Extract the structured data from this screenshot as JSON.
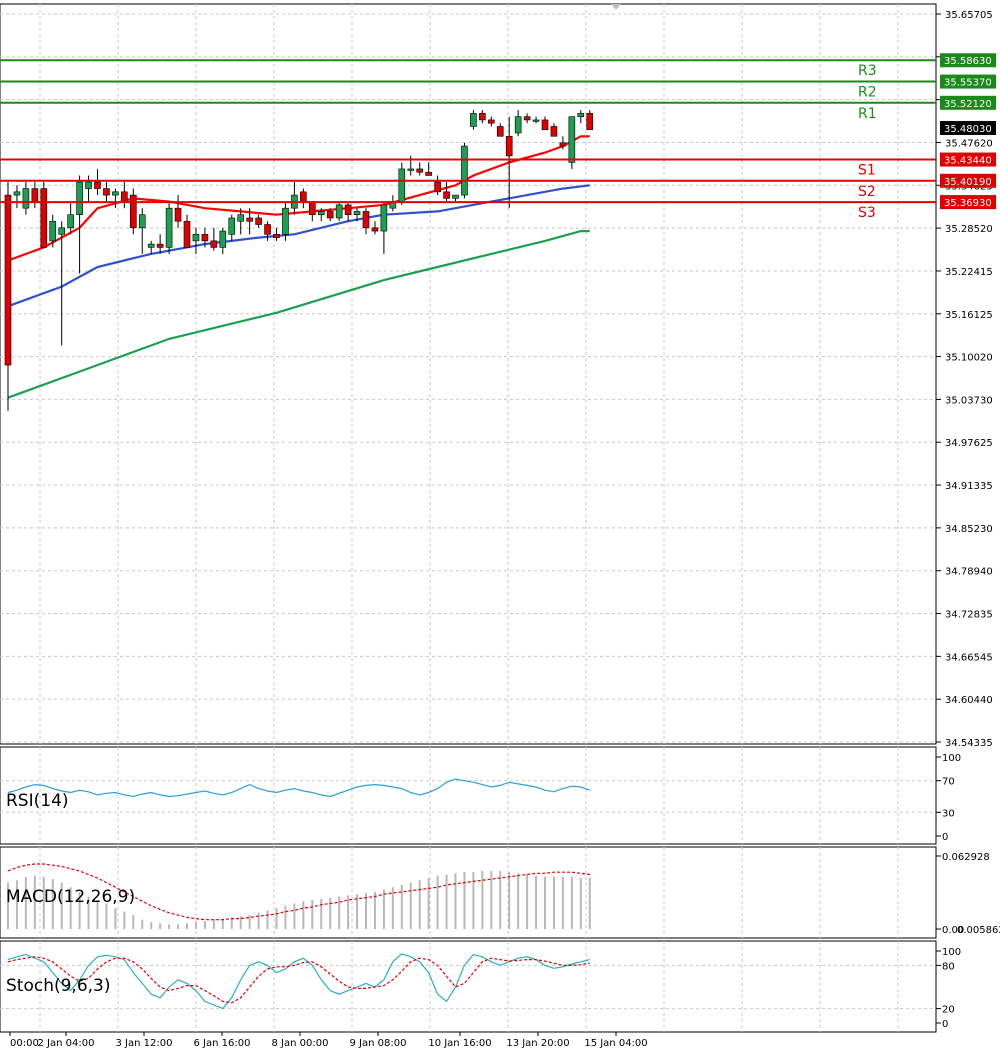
{
  "chart_data": {
    "type": "candlestick",
    "price_axis": {
      "ticks": [
        "35.65705",
        "35.59615",
        "35.53710",
        "35.47620",
        "35.34625",
        "35.28520",
        "35.22415",
        "35.16125",
        "35.10020",
        "35.03730",
        "34.97625",
        "34.91335",
        "34.85230",
        "34.78940",
        "34.72835",
        "34.66545",
        "34.60440",
        "34.54335"
      ],
      "ylim": [
        34.54335,
        35.65705
      ]
    },
    "time_axis": {
      "labels": [
        "00:00",
        "2 Jan 04:00",
        "3 Jan 12:00",
        "6 Jan 16:00",
        "8 Jan 00:00",
        "9 Jan 08:00",
        "10 Jan 16:00",
        "13 Jan 20:00",
        "15 Jan 04:00"
      ]
    },
    "current_price": "35.48030",
    "levels": [
      {
        "name": "R3",
        "value": 35.5863,
        "label": "35.58630",
        "color": "#1b8a1b"
      },
      {
        "name": "R2",
        "value": 35.5537,
        "label": "35.55370",
        "color": "#1b8a1b"
      },
      {
        "name": "R1",
        "value": 35.5212,
        "label": "35.52120",
        "color": "#1b8a1b"
      },
      {
        "name": "S1",
        "value": 35.4344,
        "label": "35.43440",
        "color": "#e00000"
      },
      {
        "name": "S2",
        "value": 35.4019,
        "label": "35.40190",
        "color": "#e00000"
      },
      {
        "name": "S3",
        "value": 35.3693,
        "label": "35.36930",
        "color": "#e00000"
      }
    ],
    "candles": [
      {
        "o": 35.38,
        "h": 35.4,
        "l": 35.05,
        "c": 35.12
      },
      {
        "o": 35.38,
        "h": 35.395,
        "l": 35.36,
        "c": 35.385
      },
      {
        "o": 35.36,
        "h": 35.4,
        "l": 35.35,
        "c": 35.39
      },
      {
        "o": 35.39,
        "h": 35.4,
        "l": 35.36,
        "c": 35.37
      },
      {
        "o": 35.39,
        "h": 35.4,
        "l": 35.3,
        "c": 35.3
      },
      {
        "o": 35.31,
        "h": 35.35,
        "l": 35.3,
        "c": 35.34
      },
      {
        "o": 35.32,
        "h": 35.34,
        "l": 35.15,
        "c": 35.33
      },
      {
        "o": 35.33,
        "h": 35.37,
        "l": 35.32,
        "c": 35.35
      },
      {
        "o": 35.35,
        "h": 35.41,
        "l": 35.26,
        "c": 35.4
      },
      {
        "o": 35.39,
        "h": 35.41,
        "l": 35.37,
        "c": 35.4
      },
      {
        "o": 35.4,
        "h": 35.42,
        "l": 35.38,
        "c": 35.39
      },
      {
        "o": 35.39,
        "h": 35.4,
        "l": 35.37,
        "c": 35.38
      },
      {
        "o": 35.38,
        "h": 35.39,
        "l": 35.36,
        "c": 35.385
      },
      {
        "o": 35.385,
        "h": 35.4,
        "l": 35.36,
        "c": 35.37
      },
      {
        "o": 35.38,
        "h": 35.39,
        "l": 35.32,
        "c": 35.33
      },
      {
        "o": 35.33,
        "h": 35.36,
        "l": 35.29,
        "c": 35.35
      },
      {
        "o": 35.3,
        "h": 35.31,
        "l": 35.29,
        "c": 35.305
      },
      {
        "o": 35.305,
        "h": 35.32,
        "l": 35.29,
        "c": 35.3
      },
      {
        "o": 35.3,
        "h": 35.37,
        "l": 35.29,
        "c": 35.36
      },
      {
        "o": 35.36,
        "h": 35.38,
        "l": 35.33,
        "c": 35.34
      },
      {
        "o": 35.34,
        "h": 35.35,
        "l": 35.3,
        "c": 35.3
      },
      {
        "o": 35.31,
        "h": 35.33,
        "l": 35.29,
        "c": 35.32
      },
      {
        "o": 35.32,
        "h": 35.33,
        "l": 35.3,
        "c": 35.31
      },
      {
        "o": 35.31,
        "h": 35.33,
        "l": 35.295,
        "c": 35.3
      },
      {
        "o": 35.3,
        "h": 35.33,
        "l": 35.29,
        "c": 35.325
      },
      {
        "o": 35.32,
        "h": 35.35,
        "l": 35.31,
        "c": 35.345
      },
      {
        "o": 35.34,
        "h": 35.36,
        "l": 35.32,
        "c": 35.35
      },
      {
        "o": 35.345,
        "h": 35.36,
        "l": 35.32,
        "c": 35.34
      },
      {
        "o": 35.345,
        "h": 35.35,
        "l": 35.33,
        "c": 35.335
      },
      {
        "o": 35.335,
        "h": 35.34,
        "l": 35.31,
        "c": 35.32
      },
      {
        "o": 35.32,
        "h": 35.33,
        "l": 35.31,
        "c": 35.315
      },
      {
        "o": 35.32,
        "h": 35.37,
        "l": 35.31,
        "c": 35.36
      },
      {
        "o": 35.36,
        "h": 35.4,
        "l": 35.35,
        "c": 35.38
      },
      {
        "o": 35.385,
        "h": 35.39,
        "l": 35.36,
        "c": 35.37
      },
      {
        "o": 35.37,
        "h": 35.37,
        "l": 35.34,
        "c": 35.35
      },
      {
        "o": 35.35,
        "h": 35.36,
        "l": 35.34,
        "c": 35.355
      },
      {
        "o": 35.355,
        "h": 35.36,
        "l": 35.34,
        "c": 35.345
      },
      {
        "o": 35.345,
        "h": 35.37,
        "l": 35.34,
        "c": 35.365
      },
      {
        "o": 35.365,
        "h": 35.37,
        "l": 35.34,
        "c": 35.35
      },
      {
        "o": 35.35,
        "h": 35.36,
        "l": 35.34,
        "c": 35.355
      },
      {
        "o": 35.355,
        "h": 35.36,
        "l": 35.32,
        "c": 35.33
      },
      {
        "o": 35.33,
        "h": 35.34,
        "l": 35.32,
        "c": 35.325
      },
      {
        "o": 35.325,
        "h": 35.37,
        "l": 35.29,
        "c": 35.365
      },
      {
        "o": 35.36,
        "h": 35.38,
        "l": 35.355,
        "c": 35.37
      },
      {
        "o": 35.37,
        "h": 35.43,
        "l": 35.365,
        "c": 35.42
      },
      {
        "o": 35.42,
        "h": 35.44,
        "l": 35.41,
        "c": 35.42
      },
      {
        "o": 35.42,
        "h": 35.43,
        "l": 35.41,
        "c": 35.415
      },
      {
        "o": 35.415,
        "h": 35.43,
        "l": 35.41,
        "c": 35.41
      },
      {
        "o": 35.4,
        "h": 35.41,
        "l": 35.38,
        "c": 35.385
      },
      {
        "o": 35.385,
        "h": 35.4,
        "l": 35.37,
        "c": 35.375
      },
      {
        "o": 35.375,
        "h": 35.38,
        "l": 35.37,
        "c": 35.38
      },
      {
        "o": 35.38,
        "h": 35.46,
        "l": 35.375,
        "c": 35.455
      },
      {
        "o": 35.485,
        "h": 35.51,
        "l": 35.48,
        "c": 35.505
      },
      {
        "o": 35.505,
        "h": 35.51,
        "l": 35.49,
        "c": 35.495
      },
      {
        "o": 35.495,
        "h": 35.5,
        "l": 35.485,
        "c": 35.49
      },
      {
        "o": 35.485,
        "h": 35.49,
        "l": 35.47,
        "c": 35.47
      },
      {
        "o": 35.47,
        "h": 35.5,
        "l": 35.36,
        "c": 35.44
      },
      {
        "o": 35.475,
        "h": 35.51,
        "l": 35.47,
        "c": 35.5
      },
      {
        "o": 35.5,
        "h": 35.505,
        "l": 35.49,
        "c": 35.495
      },
      {
        "o": 35.495,
        "h": 35.5,
        "l": 35.49,
        "c": 35.495
      },
      {
        "o": 35.495,
        "h": 35.5,
        "l": 35.48,
        "c": 35.48
      },
      {
        "o": 35.485,
        "h": 35.49,
        "l": 35.47,
        "c": 35.47
      },
      {
        "o": 35.46,
        "h": 35.47,
        "l": 35.45,
        "c": 35.455
      },
      {
        "o": 35.43,
        "h": 35.5,
        "l": 35.42,
        "c": 35.5
      },
      {
        "o": 35.5,
        "h": 35.51,
        "l": 35.49,
        "c": 35.505
      },
      {
        "o": 35.505,
        "h": 35.51,
        "l": 35.48,
        "c": 35.48
      }
    ],
    "moving_averages": [
      {
        "color": "#ff0000",
        "points": [
          [
            0,
            35.28
          ],
          [
            4,
            35.3
          ],
          [
            8,
            35.33
          ],
          [
            10,
            35.36
          ],
          [
            14,
            35.375
          ],
          [
            18,
            35.37
          ],
          [
            22,
            35.36
          ],
          [
            26,
            35.355
          ],
          [
            30,
            35.35
          ],
          [
            34,
            35.355
          ],
          [
            38,
            35.36
          ],
          [
            42,
            35.365
          ],
          [
            46,
            35.38
          ],
          [
            50,
            35.395
          ],
          [
            52,
            35.41
          ],
          [
            56,
            35.43
          ],
          [
            60,
            35.445
          ],
          [
            62,
            35.455
          ],
          [
            64,
            35.47
          ],
          [
            65,
            35.47
          ]
        ]
      },
      {
        "color": "#3050d0",
        "points": [
          [
            0,
            35.21
          ],
          [
            6,
            35.24
          ],
          [
            10,
            35.27
          ],
          [
            16,
            35.29
          ],
          [
            22,
            35.305
          ],
          [
            28,
            35.315
          ],
          [
            32,
            35.32
          ],
          [
            38,
            35.34
          ],
          [
            42,
            35.35
          ],
          [
            48,
            35.355
          ],
          [
            54,
            35.37
          ],
          [
            58,
            35.38
          ],
          [
            62,
            35.39
          ],
          [
            65,
            35.395
          ]
        ]
      },
      {
        "color": "#1aa050",
        "points": [
          [
            0,
            35.07
          ],
          [
            6,
            35.1
          ],
          [
            12,
            35.13
          ],
          [
            18,
            35.16
          ],
          [
            24,
            35.18
          ],
          [
            30,
            35.2
          ],
          [
            36,
            35.225
          ],
          [
            42,
            35.25
          ],
          [
            48,
            35.27
          ],
          [
            54,
            35.29
          ],
          [
            60,
            35.31
          ],
          [
            64,
            35.325
          ],
          [
            65,
            35.325
          ]
        ]
      }
    ],
    "rsi": {
      "title": "RSI(14)",
      "ticks": [
        "100",
        "70",
        "30",
        "0"
      ],
      "ylim": [
        0,
        100
      ],
      "values": [
        55,
        58,
        62,
        65,
        64,
        60,
        57,
        55,
        58,
        56,
        52,
        54,
        55,
        52,
        50,
        53,
        55,
        52,
        50,
        51,
        53,
        55,
        57,
        54,
        52,
        55,
        60,
        65,
        60,
        57,
        55,
        58,
        60,
        57,
        55,
        52,
        50,
        54,
        58,
        62,
        64,
        65,
        64,
        62,
        60,
        55,
        52,
        55,
        60,
        68,
        72,
        70,
        68,
        65,
        62,
        64,
        68,
        66,
        64,
        62,
        58,
        56,
        60,
        63,
        62,
        58
      ]
    },
    "macd": {
      "title": "MACD(12,26,9)",
      "ticks": [
        "0.062928",
        "0.00",
        "0.005862"
      ],
      "hist": [
        0.04,
        0.042,
        0.045,
        0.046,
        0.045,
        0.043,
        0.04,
        0.036,
        0.032,
        0.028,
        0.025,
        0.022,
        0.018,
        0.015,
        0.012,
        0.008,
        0.006,
        0.005,
        0.004,
        0.004,
        0.005,
        0.006,
        0.007,
        0.008,
        0.009,
        0.01,
        0.011,
        0.012,
        0.014,
        0.016,
        0.018,
        0.02,
        0.022,
        0.024,
        0.025,
        0.026,
        0.027,
        0.028,
        0.029,
        0.03,
        0.031,
        0.032,
        0.034,
        0.036,
        0.038,
        0.04,
        0.042,
        0.044,
        0.046,
        0.047,
        0.048,
        0.049,
        0.049,
        0.05,
        0.05,
        0.05,
        0.049,
        0.048,
        0.047,
        0.046,
        0.045,
        0.045,
        0.045,
        0.045,
        0.044,
        0.044
      ],
      "signal": [
        0.05,
        0.053,
        0.055,
        0.056,
        0.056,
        0.055,
        0.054,
        0.052,
        0.05,
        0.047,
        0.044,
        0.04,
        0.036,
        0.032,
        0.028,
        0.024,
        0.02,
        0.017,
        0.014,
        0.012,
        0.01,
        0.009,
        0.008,
        0.008,
        0.008,
        0.009,
        0.009,
        0.01,
        0.011,
        0.012,
        0.013,
        0.015,
        0.016,
        0.018,
        0.019,
        0.021,
        0.022,
        0.023,
        0.025,
        0.026,
        0.027,
        0.028,
        0.03,
        0.031,
        0.032,
        0.033,
        0.034,
        0.035,
        0.036,
        0.038,
        0.039,
        0.04,
        0.041,
        0.042,
        0.043,
        0.044,
        0.045,
        0.046,
        0.047,
        0.048,
        0.048,
        0.049,
        0.049,
        0.049,
        0.048,
        0.047
      ]
    },
    "stoch": {
      "title": "Stoch(9,6,3)",
      "ticks": [
        "100",
        "80",
        "20",
        "0"
      ],
      "ylim": [
        0,
        100
      ],
      "k": [
        88,
        92,
        95,
        90,
        85,
        70,
        55,
        45,
        60,
        80,
        92,
        94,
        92,
        88,
        70,
        55,
        40,
        35,
        50,
        60,
        55,
        45,
        30,
        25,
        20,
        35,
        60,
        80,
        85,
        80,
        70,
        75,
        85,
        90,
        80,
        60,
        45,
        40,
        45,
        50,
        55,
        50,
        60,
        85,
        96,
        92,
        85,
        70,
        40,
        30,
        50,
        80,
        95,
        92,
        85,
        80,
        85,
        90,
        92,
        88,
        80,
        76,
        78,
        82,
        85,
        88
      ],
      "d": [
        85,
        88,
        90,
        92,
        90,
        85,
        75,
        65,
        58,
        62,
        75,
        85,
        90,
        90,
        85,
        75,
        62,
        50,
        45,
        48,
        52,
        52,
        45,
        38,
        30,
        28,
        35,
        50,
        65,
        75,
        78,
        78,
        80,
        84,
        85,
        78,
        68,
        58,
        50,
        48,
        48,
        50,
        52,
        60,
        72,
        85,
        90,
        88,
        80,
        65,
        50,
        55,
        70,
        85,
        90,
        88,
        86,
        87,
        88,
        88,
        86,
        83,
        80,
        80,
        81,
        83
      ]
    }
  }
}
